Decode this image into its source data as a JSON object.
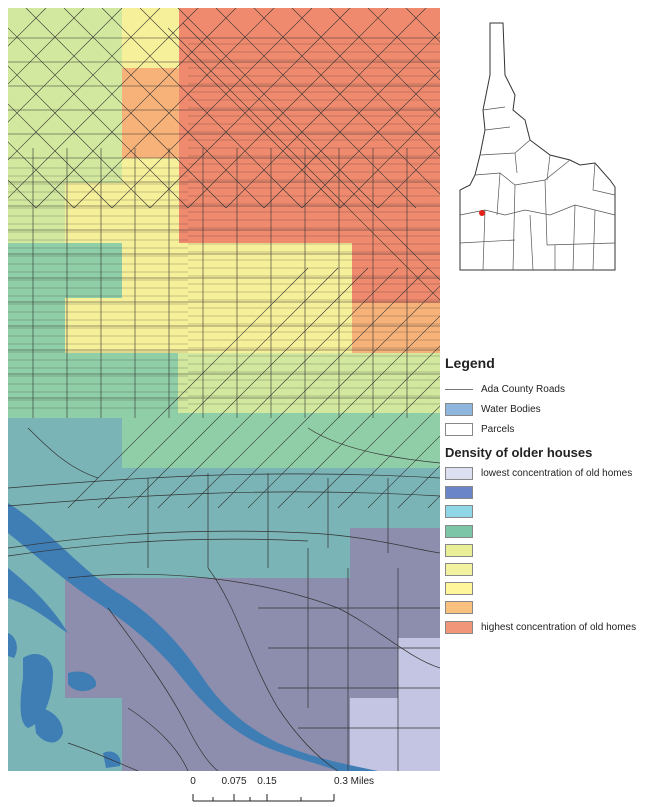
{
  "legend": {
    "title": "Legend",
    "reference_items": [
      {
        "label": "Ada County Roads",
        "kind": "line",
        "color": "#777777"
      },
      {
        "label": "Water Bodies",
        "kind": "fill",
        "color": "#8fb7de"
      },
      {
        "label": "Parcels",
        "kind": "fill",
        "color": "#ffffff"
      }
    ],
    "density_title": "Density of older houses",
    "density_classes": [
      {
        "label": "lowest concentration of old homes",
        "color": "#dde0f0"
      },
      {
        "label": "",
        "color": "#6b86c8"
      },
      {
        "label": "",
        "color": "#8fd6e6"
      },
      {
        "label": "",
        "color": "#7cc5a6"
      },
      {
        "label": "",
        "color": "#e8ef96"
      },
      {
        "label": "",
        "color": "#f2f2a0"
      },
      {
        "label": "",
        "color": "#fff59a"
      },
      {
        "label": "",
        "color": "#f9c07e"
      },
      {
        "label": "highest concentration of old homes",
        "color": "#f2967a"
      }
    ]
  },
  "scale_bar": {
    "labels": [
      "0",
      "0.075",
      "0.15",
      "0.3 Miles"
    ]
  },
  "map": {
    "water_color": "#3f7eb5",
    "road_color": "#333333",
    "zone_colors": {
      "red": "#f08a6e",
      "orange": "#f7b27a",
      "yellow": "#f7f09a",
      "lime": "#d2e89e",
      "green": "#8fcea6",
      "teal": "#7ab4b6",
      "purple": "#8d8dae",
      "lavender": "#c4c5e2"
    }
  },
  "inset": {
    "location_marker_color": "#e0221b"
  }
}
